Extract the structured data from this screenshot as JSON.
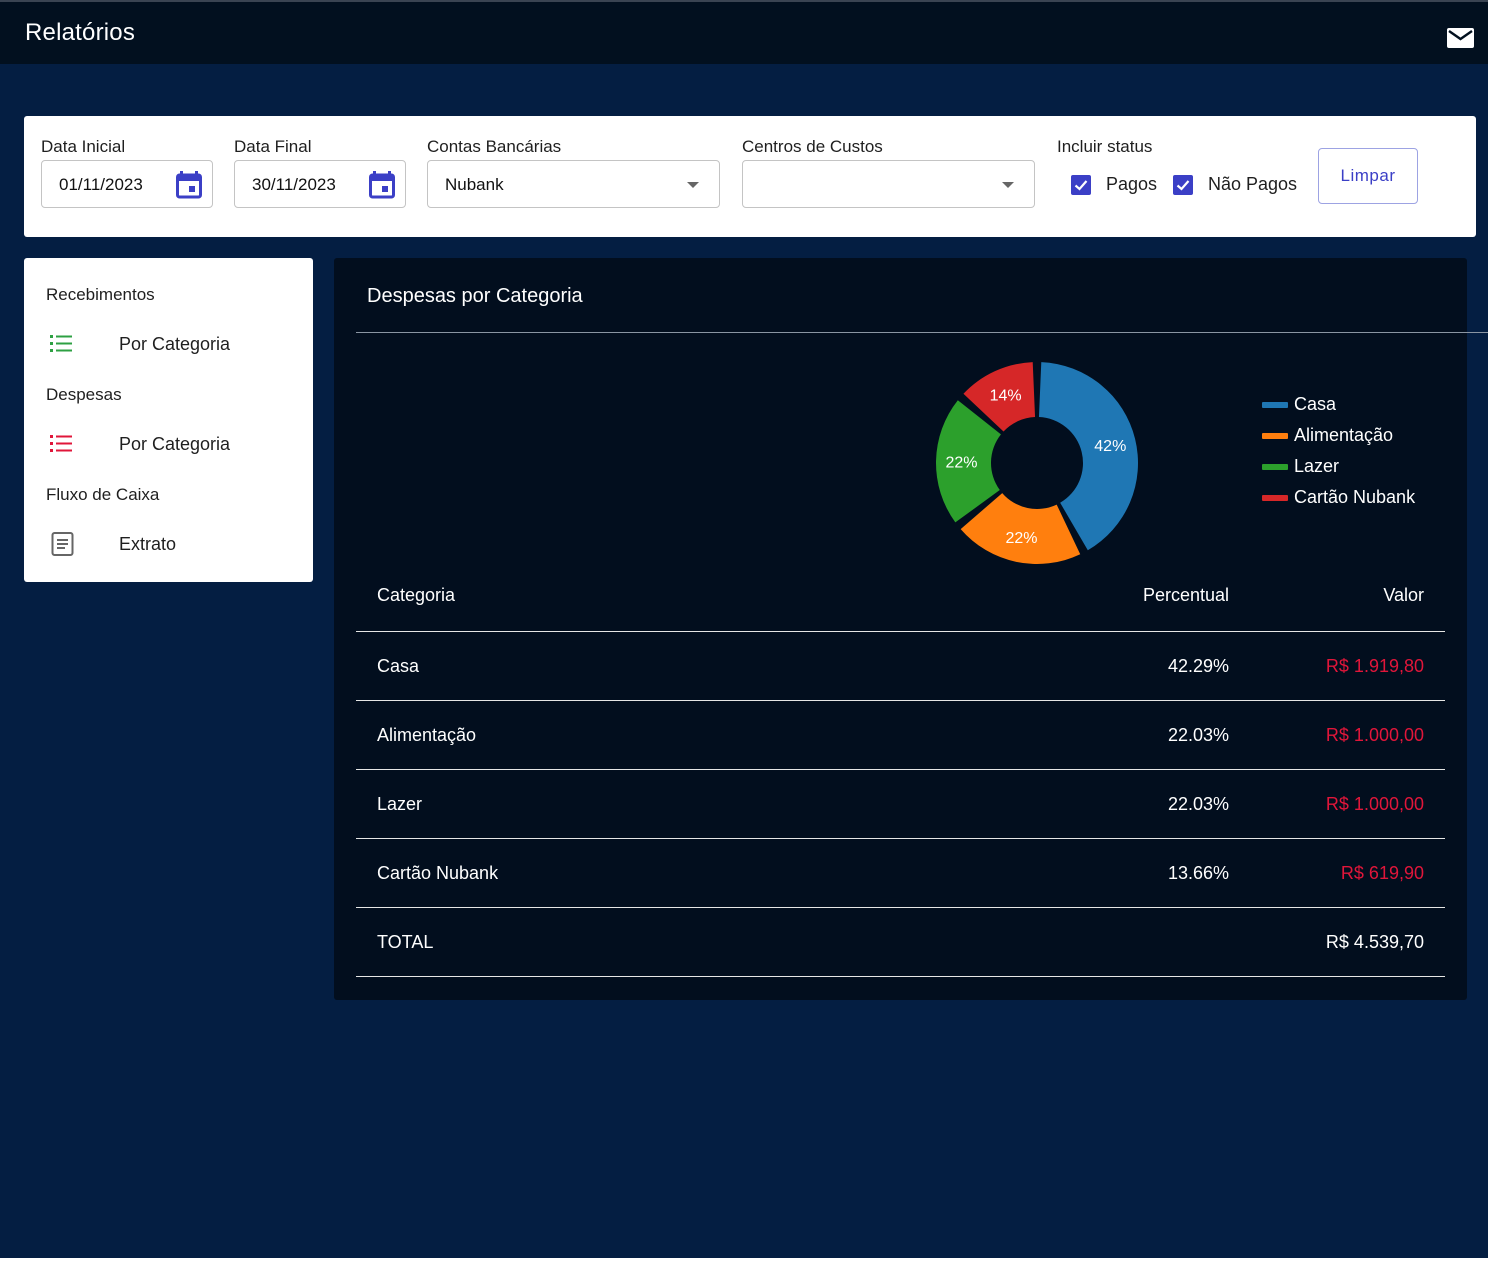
{
  "header": {
    "title": "Relatórios",
    "mail_icon": "mail-icon"
  },
  "filters": {
    "start_date_label": "Data Inicial",
    "start_date_value": "01/11/2023",
    "end_date_label": "Data Final",
    "end_date_value": "30/11/2023",
    "accounts_label": "Contas Bancárias",
    "accounts_value": "Nubank",
    "cost_centers_label": "Centros de Custos",
    "cost_centers_value": "",
    "status_label": "Incluir status",
    "paid_label": "Pagos",
    "paid_checked": true,
    "unpaid_label": "Não Pagos",
    "unpaid_checked": true,
    "clear_button": "Limpar",
    "accent": "#3b3fc6"
  },
  "sidebar": {
    "sections": [
      {
        "title": "Recebimentos",
        "items": [
          {
            "label": "Por Categoria",
            "icon": "list-icon",
            "color": "#2ea043"
          }
        ]
      },
      {
        "title": "Despesas",
        "items": [
          {
            "label": "Por Categoria",
            "icon": "list-icon",
            "color": "#e0163a"
          }
        ]
      },
      {
        "title": "Fluxo de Caixa",
        "items": [
          {
            "label": "Extrato",
            "icon": "document-icon",
            "color": "#666666"
          }
        ]
      }
    ]
  },
  "report": {
    "title": "Despesas por Categoria",
    "columns": {
      "category": "Categoria",
      "percent": "Percentual",
      "value": "Valor"
    },
    "rows": [
      {
        "category": "Casa",
        "percent": "42.29%",
        "value": "R$ 1.919,80"
      },
      {
        "category": "Alimentação",
        "percent": "22.03%",
        "value": "R$ 1.000,00"
      },
      {
        "category": "Lazer",
        "percent": "22.03%",
        "value": "R$ 1.000,00"
      },
      {
        "category": "Cartão Nubank",
        "percent": "13.66%",
        "value": "R$ 619,90"
      }
    ],
    "total": {
      "label": "TOTAL",
      "value": "R$ 4.539,70"
    },
    "negative_color": "#e0163a"
  },
  "chart_data": {
    "type": "pie",
    "categories": [
      "Casa",
      "Alimentação",
      "Lazer",
      "Cartão Nubank"
    ],
    "values": [
      42.29,
      22.03,
      22.03,
      13.66
    ],
    "data_labels": [
      "42%",
      "22%",
      "22%",
      "14%"
    ],
    "colors": [
      "#1f77b4",
      "#ff7f0e",
      "#2ca02c",
      "#d62728"
    ],
    "donut": true,
    "legend_position": "right"
  }
}
